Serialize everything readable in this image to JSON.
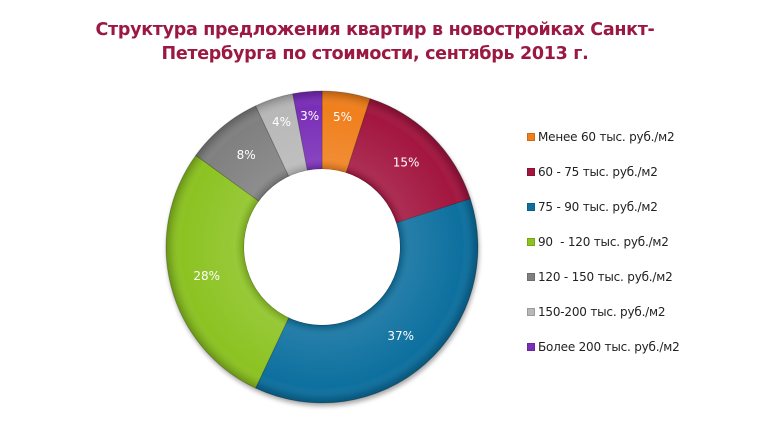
{
  "title": {
    "line1": "Структура предложения квартир в новостройках Санкт-",
    "line2": "Петербурга по стоимости, сентябрь 2013 г."
  },
  "chart_data": {
    "type": "pie",
    "variant": "donut",
    "title": "Структура предложения квартир в новостройках Санкт-Петербурга по стоимости, сентябрь 2013 г.",
    "categories": [
      "Менее 60 тыс. руб./м2",
      "60 - 75 тыс. руб./м2",
      "75 - 90 тыс. руб./м2",
      "90  - 120 тыс. руб./м2",
      "120 - 150 тыс. руб./м2",
      "150-200 тыс. руб./м2",
      "Более 200 тыс. руб./м2"
    ],
    "values": [
      5,
      15,
      37,
      28,
      8,
      4,
      3
    ],
    "value_labels": [
      "5%",
      "15%",
      "37%",
      "28%",
      "8%",
      "4%",
      "3%"
    ],
    "colors": [
      "#F07F1B",
      "#A3173F",
      "#0F6F9F",
      "#8CC320",
      "#808080",
      "#B8B8B8",
      "#7A2FB8"
    ],
    "legend_position": "right",
    "start_angle_deg": 0,
    "direction": "clockwise"
  },
  "legend": {
    "items": [
      {
        "label": "Менее 60 тыс. руб./м2",
        "color": "#F07F1B"
      },
      {
        "label": "60 - 75 тыс. руб./м2",
        "color": "#A3173F"
      },
      {
        "label": "75 - 90 тыс. руб./м2",
        "color": "#0F6F9F"
      },
      {
        "label": "90  - 120 тыс. руб./м2",
        "color": "#8CC320"
      },
      {
        "label": "120 - 150 тыс. руб./м2",
        "color": "#808080"
      },
      {
        "label": "150-200 тыс. руб./м2",
        "color": "#B8B8B8"
      },
      {
        "label": "Более 200 тыс. руб./м2",
        "color": "#7A2FB8"
      }
    ]
  }
}
